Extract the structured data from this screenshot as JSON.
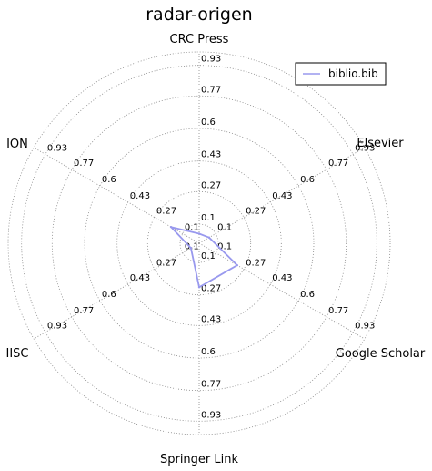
{
  "chart_data": {
    "type": "radar",
    "title": "radar-origen",
    "axes": [
      "CRC Press",
      "Elsevier",
      "Google Scholar",
      "Springer Link",
      "IISC",
      "ION"
    ],
    "ring_labels": [
      "0.1",
      "0.27",
      "0.43",
      "0.6",
      "0.77",
      "0.93"
    ],
    "ring_values": [
      0.1,
      0.27,
      0.43,
      0.6,
      0.77,
      0.93
    ],
    "range": [
      0,
      1.0
    ],
    "grid": true,
    "legend": {
      "placement": "top-right"
    },
    "series": [
      {
        "name": "biblio.bib",
        "color": "#9999ee",
        "values": [
          0.05,
          0.06,
          0.23,
          0.23,
          0.05,
          0.17
        ]
      }
    ]
  }
}
